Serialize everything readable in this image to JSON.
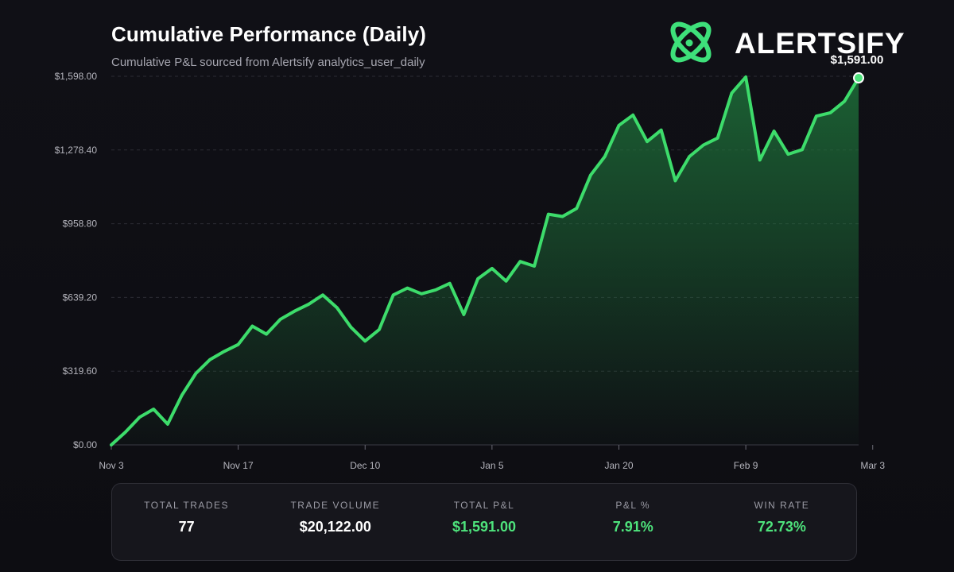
{
  "header": {
    "title": "Cumulative Performance (Daily)",
    "subtitle": "Cumulative P&L sourced from Alertsify analytics_user_daily"
  },
  "brand": {
    "name": "ALERTSIFY",
    "icon": "atom-logo-icon",
    "accent": "#4ee37c"
  },
  "chart_data": {
    "type": "area",
    "title": "Cumulative Performance (Daily)",
    "subtitle": "Cumulative P&L sourced from Alertsify analytics_user_daily",
    "xlabel": "",
    "ylabel": "",
    "ylim": [
      0,
      1598
    ],
    "yticks": [
      0,
      319.6,
      639.2,
      958.8,
      1278.4,
      1598
    ],
    "ytick_labels": [
      "$0.00",
      "$319.60",
      "$639.20",
      "$958.80",
      "$1,278.40",
      "$1,598.00"
    ],
    "xtick_labels": [
      "Nov 3",
      "Nov 17",
      "Dec 10",
      "Jan 5",
      "Jan 20",
      "Feb 9",
      "Mar 3"
    ],
    "xtick_positions": [
      0,
      9,
      18,
      27,
      36,
      45,
      54
    ],
    "grid": "horizontal-dashed",
    "line_color": "#3ddc6b",
    "fill_color": "#1e7a3c",
    "end_label": "$1,591.00",
    "series": [
      {
        "values": [
          0,
          55,
          120,
          155,
          90,
          215,
          310,
          370,
          405,
          435,
          515,
          480,
          545,
          580,
          610,
          650,
          595,
          510,
          450,
          500,
          650,
          680,
          655,
          672,
          700,
          565,
          720,
          765,
          710,
          795,
          775,
          1000,
          990,
          1025,
          1170,
          1250,
          1385,
          1430,
          1315,
          1365,
          1145,
          1250,
          1300,
          1330,
          1525,
          1595,
          1235,
          1360,
          1260,
          1280,
          1425,
          1440,
          1490,
          1591
        ]
      }
    ]
  },
  "stats": [
    {
      "label": "TOTAL TRADES",
      "value": "77",
      "positive": false
    },
    {
      "label": "TRADE VOLUME",
      "value": "$20,122.00",
      "positive": false
    },
    {
      "label": "TOTAL P&L",
      "value": "$1,591.00",
      "positive": true
    },
    {
      "label": "P&L %",
      "value": "7.91%",
      "positive": true
    },
    {
      "label": "WIN RATE",
      "value": "72.73%",
      "positive": true
    }
  ]
}
